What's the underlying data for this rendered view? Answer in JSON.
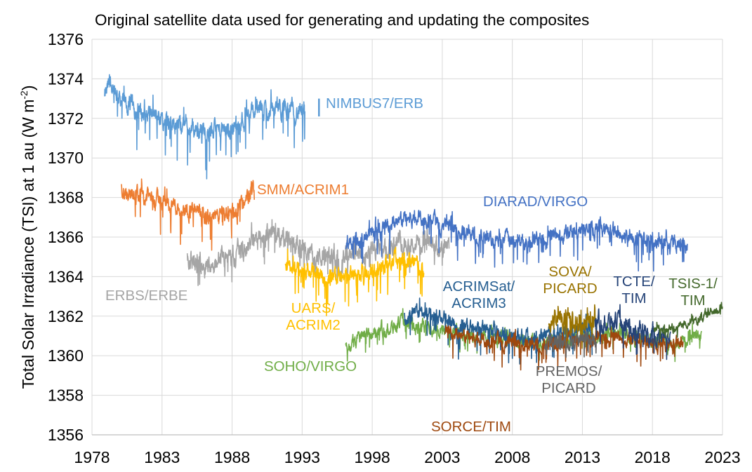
{
  "chart_data": {
    "type": "line",
    "title": "Original satellite data used for generating and updating the composites",
    "xlabel": "",
    "ylabel": "Total Solar Irradiance (TSI) at 1 au (W m-2)",
    "ylabel_main": "Total Solar Irradiance (TSI) at 1 au (W m",
    "ylabel_sup": "-2",
    "ylabel_end": ")",
    "xlim": [
      1978,
      2023
    ],
    "ylim": [
      1356,
      1376
    ],
    "xticks": [
      "1978",
      "1983",
      "1988",
      "1993",
      "1998",
      "2003",
      "2008",
      "2013",
      "2018",
      "2023"
    ],
    "yticks": [
      "1356",
      "1358",
      "1360",
      "1362",
      "1364",
      "1366",
      "1368",
      "1370",
      "1372",
      "1374",
      "1376"
    ],
    "grid": true,
    "series": [
      {
        "name": "NIMBUS7/ERB",
        "label_lines": [
          "NIMBUS7/ERB"
        ],
        "color": "#5B9BD5",
        "baseline": [
          [
            1978.9,
            1373.0
          ],
          [
            1979.3,
            1373.8
          ],
          [
            1980.5,
            1372.6
          ],
          [
            1982,
            1372.2
          ],
          [
            1984,
            1371.7
          ],
          [
            1986,
            1371.4
          ],
          [
            1987.5,
            1371.3
          ],
          [
            1988,
            1371.6
          ],
          [
            1989.5,
            1372.3
          ],
          [
            1991,
            1372.5
          ],
          [
            1992,
            1372.4
          ],
          [
            1993.2,
            1372.2
          ]
        ],
        "noise": 0.45,
        "dips": 1.8,
        "extra": [
          [
            1994.2,
            1372.5
          ]
        ]
      },
      {
        "name": "SMM/ACRIM1",
        "label_lines": [
          "SMM/ACRIM1"
        ],
        "color": "#ED7D31",
        "baseline": [
          [
            1980.1,
            1368.4
          ],
          [
            1981,
            1368.2
          ],
          [
            1983,
            1367.8
          ],
          [
            1984,
            1367.6
          ],
          [
            1984.4,
            1367.4
          ],
          [
            1985,
            1367.4
          ],
          [
            1986,
            1367.0
          ],
          [
            1987,
            1367.0
          ],
          [
            1988,
            1367.2
          ],
          [
            1989,
            1367.7
          ],
          [
            1989.6,
            1368.6
          ]
        ],
        "noise": 0.4,
        "dips": 1.6
      },
      {
        "name": "ERBS/ERBE",
        "label_lines": [
          "ERBS/ERBE"
        ],
        "color": "#A5A5A5",
        "baseline": [
          [
            1984.8,
            1364.9
          ],
          [
            1986,
            1364.6
          ],
          [
            1987.5,
            1364.9
          ],
          [
            1989,
            1365.4
          ],
          [
            1990.5,
            1366.2
          ],
          [
            1992,
            1365.8
          ],
          [
            1994,
            1365.0
          ],
          [
            1996,
            1364.8
          ],
          [
            1998,
            1365.2
          ],
          [
            2000,
            1365.8
          ],
          [
            2002,
            1365.6
          ],
          [
            2003.5,
            1365.3
          ]
        ],
        "noise": 0.45,
        "dips": 1.2
      },
      {
        "name": "UARS/ACRIM2",
        "label_lines": [
          "UARS/",
          "ACRIM2"
        ],
        "color": "#FFC000",
        "baseline": [
          [
            1991.8,
            1364.6
          ],
          [
            1993,
            1364.2
          ],
          [
            1995,
            1364.0
          ],
          [
            1997,
            1364.0
          ],
          [
            1998.5,
            1364.5
          ],
          [
            2000,
            1365.0
          ],
          [
            2001,
            1364.7
          ],
          [
            2001.7,
            1364.3
          ]
        ],
        "noise": 0.4,
        "dips": 1.5
      },
      {
        "name": "DIARAD/VIRGO",
        "label_lines": [
          "DIARAD/VIRGO"
        ],
        "color": "#4472C4",
        "baseline": [
          [
            1996.1,
            1365.6
          ],
          [
            1997,
            1365.8
          ],
          [
            1998.5,
            1366.3
          ],
          [
            2000,
            1366.9
          ],
          [
            2001.5,
            1367.0
          ],
          [
            2003,
            1366.6
          ],
          [
            2005,
            1366.1
          ],
          [
            2007,
            1365.9
          ],
          [
            2009,
            1365.8
          ],
          [
            2011,
            1366.0
          ],
          [
            2013,
            1366.3
          ],
          [
            2014.5,
            1366.5
          ],
          [
            2016,
            1366.0
          ],
          [
            2018,
            1365.8
          ],
          [
            2020.5,
            1365.6
          ]
        ],
        "noise": 0.35,
        "dips": 1.4
      },
      {
        "name": "SOHO/VIRGO",
        "label_lines": [
          "SOHO/VIRGO"
        ],
        "color": "#70AD47",
        "baseline": [
          [
            1996.1,
            1360.5
          ],
          [
            1997,
            1360.9
          ],
          [
            1998.5,
            1361.3
          ],
          [
            2000,
            1361.6
          ],
          [
            2002,
            1361.5
          ],
          [
            2004,
            1361.2
          ],
          [
            2007,
            1360.9
          ],
          [
            2009,
            1360.7
          ],
          [
            2012,
            1360.9
          ],
          [
            2015,
            1361.0
          ],
          [
            2018,
            1360.8
          ],
          [
            2020,
            1360.7
          ],
          [
            2021.5,
            1361.0
          ]
        ],
        "noise": 0.3,
        "dips": 0.8
      },
      {
        "name": "ACRIMSat/ACRIM3",
        "label_lines": [
          "ACRIMSat/",
          "ACRIM3"
        ],
        "color": "#255E91",
        "baseline": [
          [
            2000.3,
            1361.9
          ],
          [
            2001.5,
            1362.2
          ],
          [
            2003,
            1361.8
          ],
          [
            2005,
            1361.4
          ],
          [
            2007,
            1361.2
          ],
          [
            2009,
            1360.9
          ],
          [
            2011,
            1361.1
          ],
          [
            2013,
            1361.3
          ],
          [
            2013.7,
            1361.3
          ]
        ],
        "noise": 0.35,
        "dips": 1.3
      },
      {
        "name": "SORCE/TIM",
        "label_lines": [
          "SORCE/TIM"
        ],
        "color": "#9E480E",
        "baseline": [
          [
            2003.2,
            1361.2
          ],
          [
            2004.5,
            1361.0
          ],
          [
            2006,
            1360.8
          ],
          [
            2008,
            1360.6
          ],
          [
            2010,
            1360.5
          ],
          [
            2012,
            1360.8
          ],
          [
            2014,
            1361.0
          ],
          [
            2016,
            1360.8
          ],
          [
            2018,
            1360.6
          ],
          [
            2020.2,
            1360.6
          ]
        ],
        "noise": 0.3,
        "dips": 1.2
      },
      {
        "name": "SOVA/PICARD",
        "label_lines": [
          "SOVA/",
          "PICARD"
        ],
        "color": "#997300",
        "baseline": [
          [
            2010.6,
            1361.6
          ],
          [
            2011.5,
            1362.0
          ],
          [
            2012.5,
            1361.6
          ],
          [
            2013.5,
            1361.8
          ],
          [
            2014,
            1361.6
          ]
        ],
        "noise": 0.5,
        "dips": 1.0
      },
      {
        "name": "PREMOS/PICARD",
        "label_lines": [
          "PREMOS/",
          "PICARD"
        ],
        "color": "#636363",
        "baseline": [
          [
            2010.3,
            1360.6
          ],
          [
            2011.5,
            1360.8
          ],
          [
            2012.5,
            1360.7
          ],
          [
            2013.5,
            1360.9
          ],
          [
            2014,
            1360.8
          ]
        ],
        "noise": 0.35,
        "dips": 0.8
      },
      {
        "name": "TCTE/TIM",
        "label_lines": [
          "TCTE/",
          "TIM"
        ],
        "color": "#264478",
        "baseline": [
          [
            2013.9,
            1361.7
          ],
          [
            2015,
            1361.8
          ],
          [
            2016,
            1361.4
          ],
          [
            2017,
            1361.3
          ],
          [
            2018,
            1361.1
          ],
          [
            2019.3,
            1361.0
          ]
        ],
        "noise": 0.4,
        "dips": 1.2
      },
      {
        "name": "TSIS-1/TIM",
        "label_lines": [
          "TSIS-1/",
          "TIM"
        ],
        "color": "#43682B",
        "baseline": [
          [
            2018.1,
            1361.4
          ],
          [
            2019.5,
            1361.4
          ],
          [
            2020.5,
            1361.6
          ],
          [
            2021.5,
            1361.9
          ],
          [
            2022.5,
            1362.3
          ],
          [
            2023,
            1362.5
          ]
        ],
        "noise": 0.2,
        "dips": 0.4
      }
    ]
  }
}
